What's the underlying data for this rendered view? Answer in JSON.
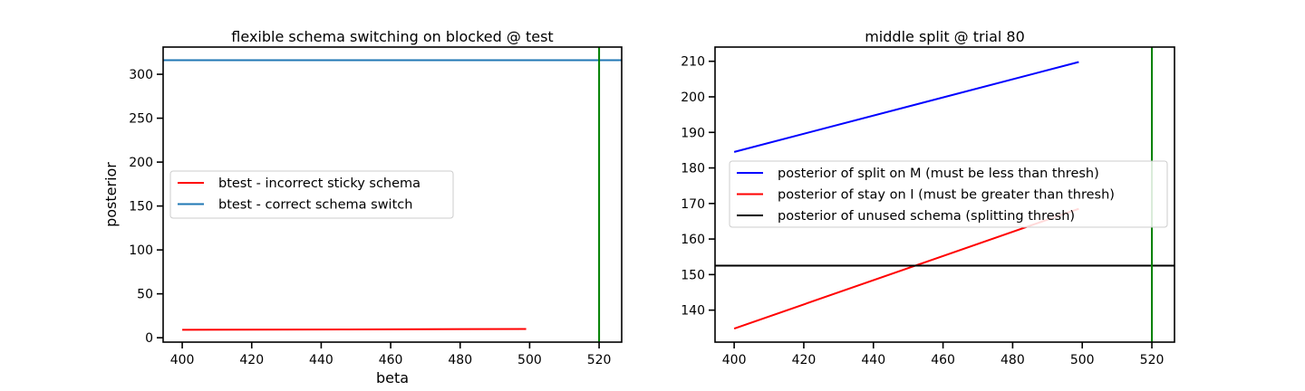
{
  "chart_data": [
    {
      "type": "line",
      "title": "flexible schema switching on blocked @ test",
      "xlabel": "beta",
      "ylabel": "posterior",
      "xlim": [
        394.5,
        526.5
      ],
      "ylim": [
        -5,
        331
      ],
      "xticks": [
        400,
        420,
        440,
        460,
        480,
        500,
        520
      ],
      "yticks": [
        0,
        50,
        100,
        150,
        200,
        250,
        300
      ],
      "legend_position": "center-left",
      "series": [
        {
          "name": "btest - incorrect sticky schema",
          "color": "#ff0000",
          "x": [
            400,
            499
          ],
          "y": [
            9,
            10
          ]
        }
      ],
      "hlines": [
        {
          "name": "btest - correct schema switch",
          "color": "#1f77b4",
          "y": 316
        }
      ],
      "vlines": [
        {
          "color": "#008000",
          "x": 520
        }
      ]
    },
    {
      "type": "line",
      "title": "middle split @ trial 80",
      "xlabel": "",
      "ylabel": "",
      "xlim": [
        394.5,
        526.5
      ],
      "ylim": [
        131,
        214
      ],
      "xticks": [
        400,
        420,
        440,
        460,
        480,
        500,
        520
      ],
      "yticks": [
        140,
        150,
        160,
        170,
        180,
        190,
        200,
        210
      ],
      "legend_position": "center",
      "series": [
        {
          "name": "posterior of split on M (must be less than thresh)",
          "color": "#0000ff",
          "x": [
            400,
            499
          ],
          "y": [
            184.5,
            209.8
          ]
        },
        {
          "name": "posterior of stay on I (must be greater than thresh)",
          "color": "#ff0000",
          "x": [
            400,
            499
          ],
          "y": [
            134.8,
            168.5
          ]
        }
      ],
      "hlines": [
        {
          "name": "posterior of unused schema (splitting thresh)",
          "color": "#000000",
          "y": 152.5
        }
      ],
      "vlines": [
        {
          "color": "#008000",
          "x": 520
        }
      ]
    }
  ]
}
